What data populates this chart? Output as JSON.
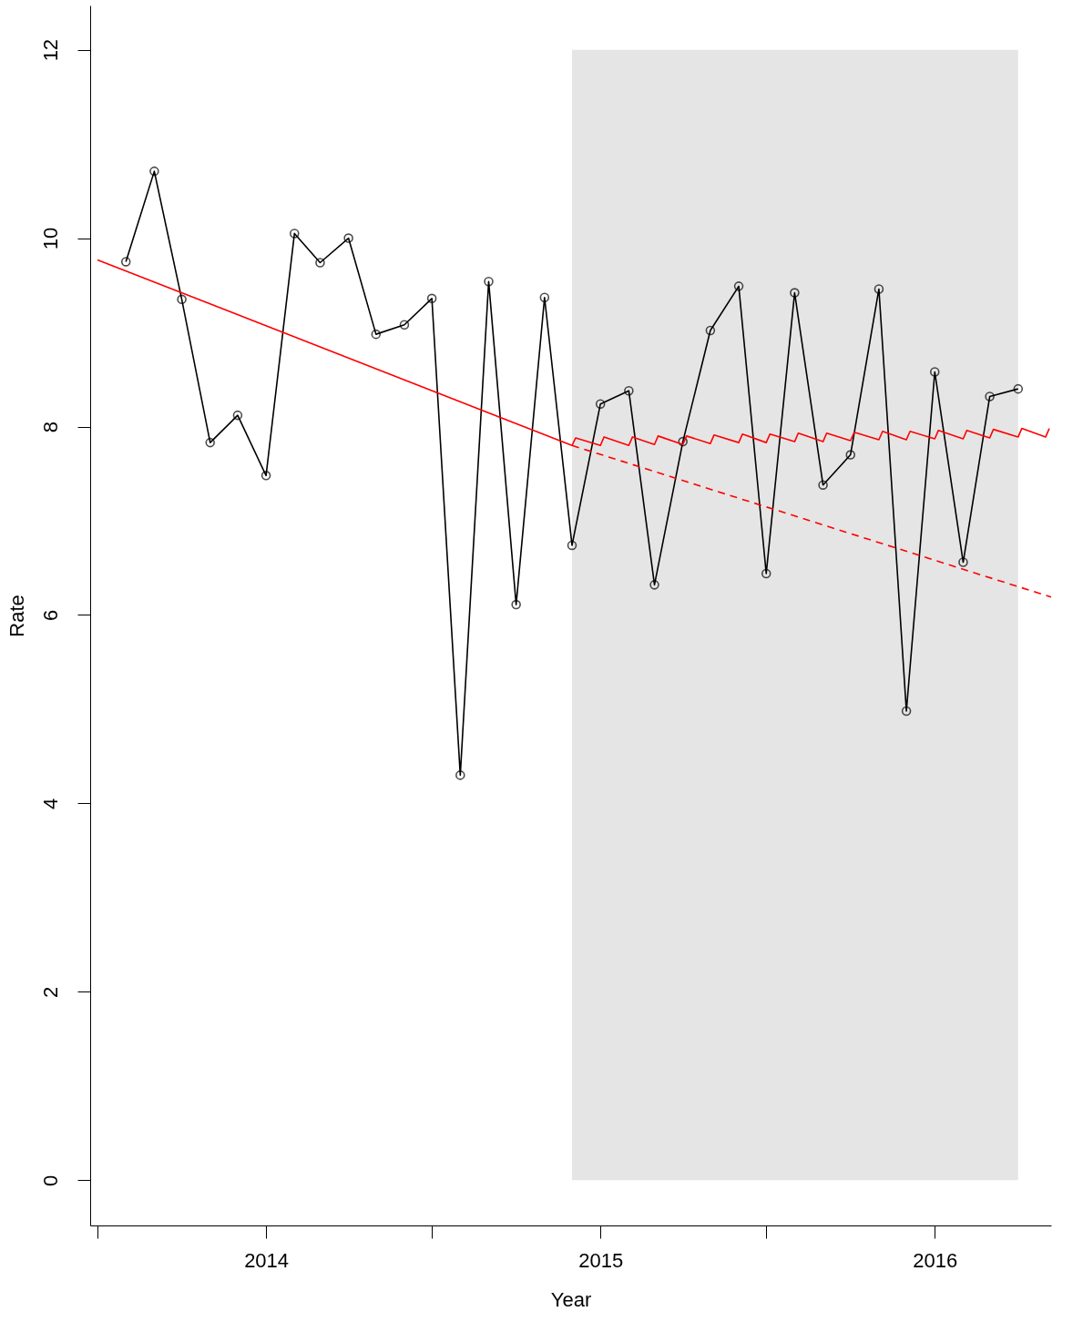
{
  "chart_data": {
    "type": "line",
    "xlabel": "Year",
    "ylabel": "Rate",
    "xlim": [
      "2013-06-23",
      "2016-05-07"
    ],
    "ylim": [
      -0.48,
      12.47
    ],
    "xticks": [
      {
        "value": "2013-07",
        "label": null
      },
      "2014",
      {
        "value": "2014-07",
        "label": null
      },
      "2015",
      {
        "value": "2015-07",
        "label": null
      },
      "2016"
    ],
    "yticks": [
      0,
      2,
      4,
      6,
      8,
      10,
      12
    ],
    "grid": false,
    "bands": [
      {
        "axis": "x",
        "from": "2014-12",
        "to": "2016-04",
        "color": "#e5e5e5"
      }
    ],
    "series": [
      {
        "color": "#000000",
        "marker": "circle",
        "line_style": "solid",
        "x": [
          "2013-08",
          "2013-09",
          "2013-10",
          "2013-11",
          "2013-12",
          "2014-01",
          "2014-02",
          "2014-03",
          "2014-04",
          "2014-05",
          "2014-06",
          "2014-07",
          "2014-08",
          "2014-09",
          "2014-10",
          "2014-11",
          "2014-12",
          "2015-01",
          "2015-02",
          "2015-03",
          "2015-04",
          "2015-05",
          "2015-06",
          "2015-07",
          "2015-08",
          "2015-09",
          "2015-10",
          "2015-11",
          "2015-12",
          "2016-01",
          "2016-02",
          "2016-03",
          "2016-04"
        ],
        "values": [
          9.75,
          10.71,
          9.35,
          7.83,
          8.12,
          7.48,
          10.05,
          9.74,
          10.0,
          8.98,
          9.08,
          9.36,
          4.3,
          9.54,
          6.11,
          9.37,
          6.74,
          8.24,
          8.38,
          6.32,
          7.84,
          9.02,
          9.49,
          6.44,
          9.42,
          7.38,
          7.7,
          9.46,
          4.98,
          8.58,
          6.56,
          8.32,
          8.4
        ]
      },
      {
        "color": "#ff0000",
        "marker": "none",
        "line_style": "solid",
        "x": [
          "2013-07",
          "2014-12",
          "2014-12-05",
          "2015-01",
          "2015-01-05",
          "2015-02",
          "2015-02-05",
          "2015-03",
          "2015-03-05",
          "2015-04",
          "2015-04-05",
          "2015-05",
          "2015-05-05",
          "2015-06",
          "2015-06-05",
          "2015-07",
          "2015-07-05",
          "2015-08",
          "2015-08-05",
          "2015-09",
          "2015-09-05",
          "2015-10",
          "2015-10-05",
          "2015-11",
          "2015-11-05",
          "2015-12",
          "2015-12-05",
          "2016-01",
          "2016-01-05",
          "2016-02",
          "2016-02-05",
          "2016-03",
          "2016-03-05",
          "2016-04",
          "2016-04-05",
          "2016-05",
          "2016-05-05"
        ],
        "values": [
          9.77,
          7.8,
          7.88,
          7.8,
          7.89,
          7.8,
          7.89,
          7.81,
          7.9,
          7.81,
          7.9,
          7.82,
          7.91,
          7.83,
          7.92,
          7.83,
          7.92,
          7.84,
          7.93,
          7.84,
          7.93,
          7.85,
          7.94,
          7.86,
          7.95,
          7.86,
          7.95,
          7.87,
          7.96,
          7.87,
          7.96,
          7.88,
          7.97,
          7.89,
          7.98,
          7.89,
          7.98
        ]
      },
      {
        "color": "#ff0000",
        "marker": "none",
        "line_style": "dashed",
        "x": [
          "2014-12",
          "2016-05-07"
        ],
        "values": [
          7.8,
          6.19
        ]
      }
    ]
  }
}
